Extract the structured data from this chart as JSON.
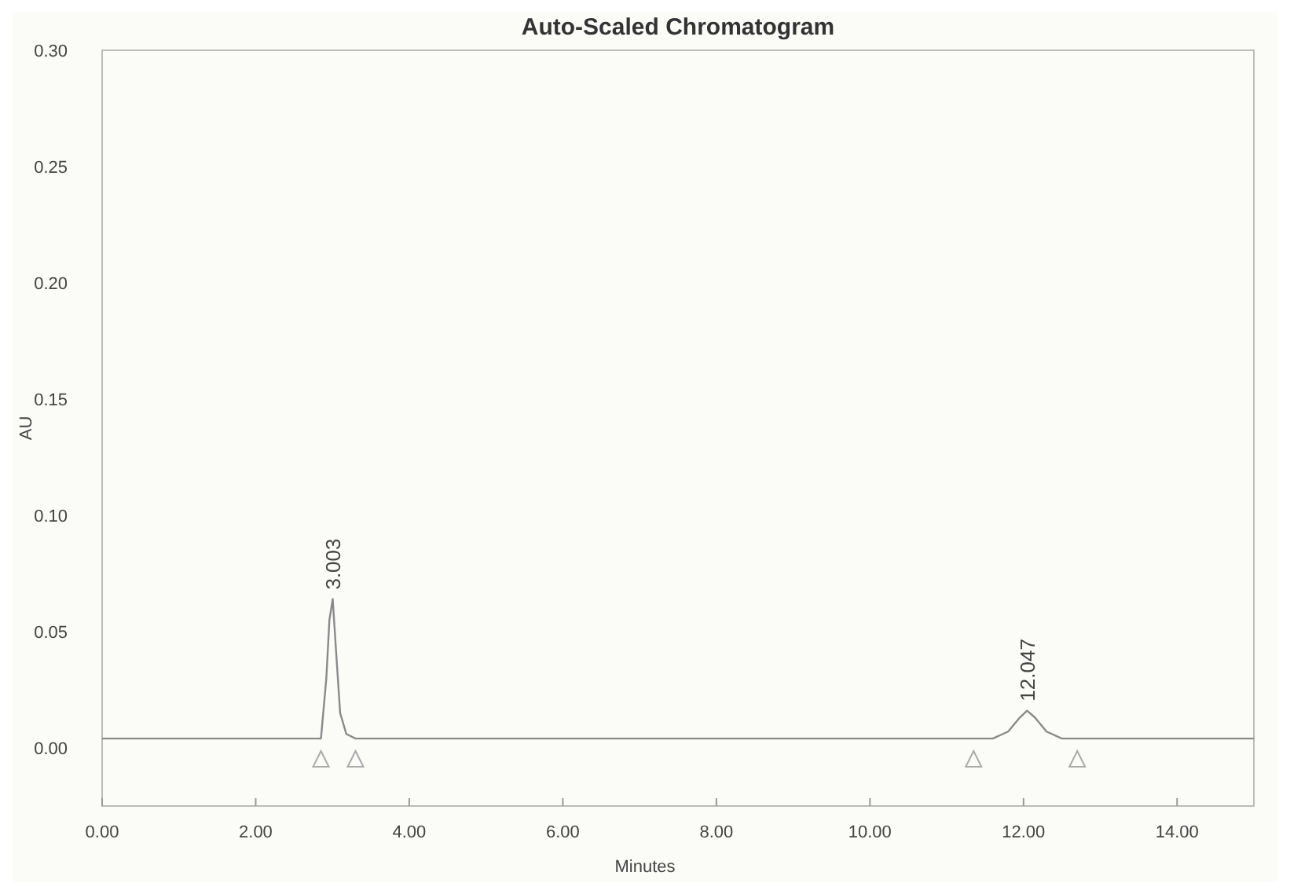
{
  "chart_data": {
    "type": "line",
    "title": "Auto-Scaled Chromatogram",
    "xlabel": "Minutes",
    "ylabel": "AU",
    "xlim": [
      0,
      15
    ],
    "xticks": [
      {
        "value": 0,
        "label": "0.00"
      },
      {
        "value": 2,
        "label": "2.00"
      },
      {
        "value": 4,
        "label": "4.00"
      },
      {
        "value": 6,
        "label": "6.00"
      },
      {
        "value": 8,
        "label": "8.00"
      },
      {
        "value": 10,
        "label": "10.00"
      },
      {
        "value": 12,
        "label": "12.00"
      },
      {
        "value": 14,
        "label": "14.00"
      }
    ],
    "ylim": [
      -0.025,
      0.3
    ],
    "yticks": [
      {
        "value": 0,
        "label": "0.00"
      },
      {
        "value": 0.05,
        "label": "0.05"
      },
      {
        "value": 0.1,
        "label": "0.10"
      },
      {
        "value": 0.15,
        "label": "0.15"
      },
      {
        "value": 0.2,
        "label": "0.20"
      },
      {
        "value": 0.25,
        "label": "0.25"
      },
      {
        "value": 0.3,
        "label": "0.30"
      }
    ],
    "grid": false,
    "marker": "none",
    "line_style": "solid",
    "series": [
      {
        "color": "#8a8a8a",
        "x": [
          0,
          2.85,
          2.92,
          2.96,
          3.003,
          3.05,
          3.1,
          3.18,
          3.3,
          11.6,
          11.8,
          11.95,
          12.047,
          12.15,
          12.3,
          12.5,
          15
        ],
        "values": [
          0.004,
          0.004,
          0.03,
          0.055,
          0.064,
          0.04,
          0.015,
          0.006,
          0.004,
          0.004,
          0.007,
          0.013,
          0.016,
          0.013,
          0.007,
          0.004,
          0.004
        ]
      }
    ],
    "annotations": [
      {
        "text": "3.003",
        "x": 3.003,
        "y": 0.064
      },
      {
        "text": "12.047",
        "x": 12.047,
        "y": 0.016
      }
    ]
  }
}
